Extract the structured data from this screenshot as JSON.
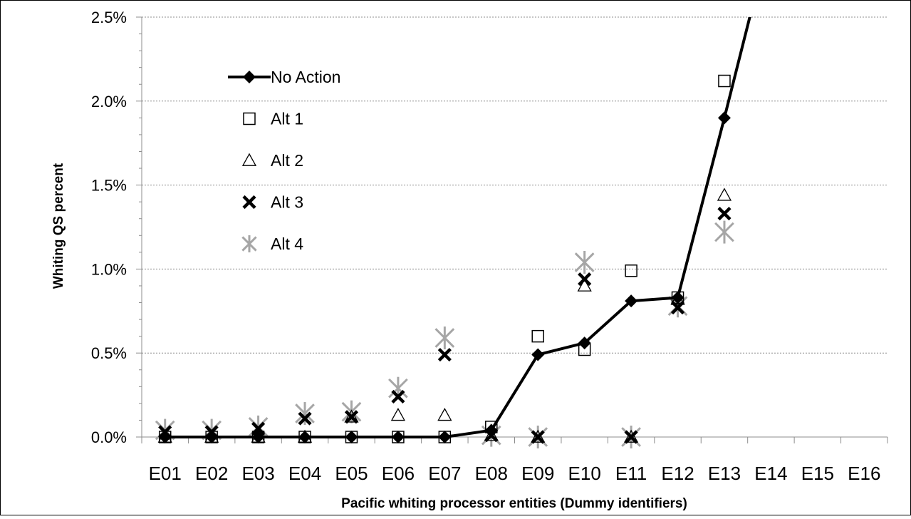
{
  "chart_data": {
    "type": "line",
    "xlabel": "Pacific whiting processor entities (Dummy identifiers)",
    "ylabel": "Whiting QS percent",
    "ylim": [
      0,
      0.025
    ],
    "ytick_values": [
      0,
      0.005,
      0.01,
      0.015,
      0.02,
      0.025
    ],
    "ytick_labels": [
      "0.0%",
      "0.5%",
      "1.0%",
      "1.5%",
      "2.0%",
      "2.5%"
    ],
    "categories": [
      "E01",
      "E02",
      "E03",
      "E04",
      "E05",
      "E06",
      "E07",
      "E08",
      "E09",
      "E10",
      "E11",
      "E12",
      "E13",
      "E14",
      "E15",
      "E16"
    ],
    "grid": "horizontal dotted",
    "legend_position": "upper-left",
    "series": [
      {
        "name": "No Action",
        "marker": "diamond-line",
        "color": "#000000",
        "values": [
          0,
          0,
          0,
          0,
          0,
          0,
          0,
          0.0004,
          0.0049,
          0.0056,
          0.0081,
          0.0083,
          0.019,
          0.03,
          null,
          null
        ]
      },
      {
        "name": "Alt 1",
        "marker": "square",
        "color": "#000000",
        "values": [
          0,
          0,
          0,
          0,
          0,
          0,
          0,
          0.0006,
          0.006,
          0.0052,
          0.0099,
          0.0083,
          0.0212,
          null,
          null,
          null
        ]
      },
      {
        "name": "Alt 2",
        "marker": "triangle",
        "color": "#000000",
        "values": [
          0,
          0,
          0,
          0,
          0.0012,
          0.0013,
          0.0013,
          0.0001,
          0,
          0.009,
          0,
          0.0082,
          0.0144,
          null,
          null,
          null
        ]
      },
      {
        "name": "Alt 3",
        "marker": "x",
        "color": "#000000",
        "values": [
          0.0003,
          0.0003,
          0.0005,
          0.0011,
          0.0012,
          0.0024,
          0.0049,
          0.0001,
          0,
          0.0094,
          0,
          0.0077,
          0.0133,
          null,
          null,
          null
        ]
      },
      {
        "name": "Alt 4",
        "marker": "star",
        "color": "#a6a6a6",
        "values": [
          0.0004,
          0.0004,
          0.0006,
          0.0014,
          0.0015,
          0.0029,
          0.0059,
          0.0001,
          0,
          0.0104,
          0,
          0.0078,
          0.0122,
          null,
          null,
          null
        ]
      }
    ]
  }
}
